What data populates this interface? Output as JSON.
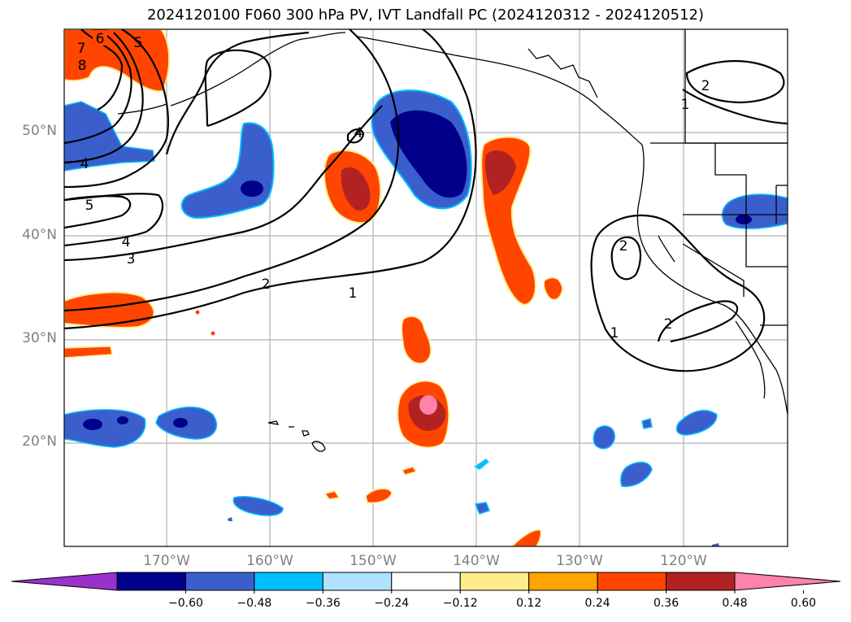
{
  "title": "2024120100 F060 300 hPa PV, IVT Landfall PC (2024120312 - 2024120512)",
  "latitude_labels": [
    "50°N",
    "40°N",
    "30°N",
    "20°N"
  ],
  "longitude_labels": [
    "170°W",
    "160°W",
    "150°W",
    "140°W",
    "130°W",
    "120°W"
  ],
  "colorbar": {
    "ticks": [
      "−0.60",
      "−0.48",
      "−0.36",
      "−0.24",
      "−0.12",
      "0.12",
      "0.24",
      "0.36",
      "0.48",
      "0.60"
    ],
    "colors": [
      "#9932cc",
      "#00008b",
      "#3a5fcd",
      "#00bfff",
      "#b0e2ff",
      "#ffffff",
      "#ffec8b",
      "#ffa500",
      "#ff4500",
      "#b22222",
      "#ff82ab"
    ]
  },
  "contour_labels": [
    "6",
    "7",
    "8",
    "5",
    "4",
    "5",
    "4",
    "3",
    "2",
    "1",
    "4",
    "2",
    "1",
    "2",
    "2",
    "1"
  ]
}
